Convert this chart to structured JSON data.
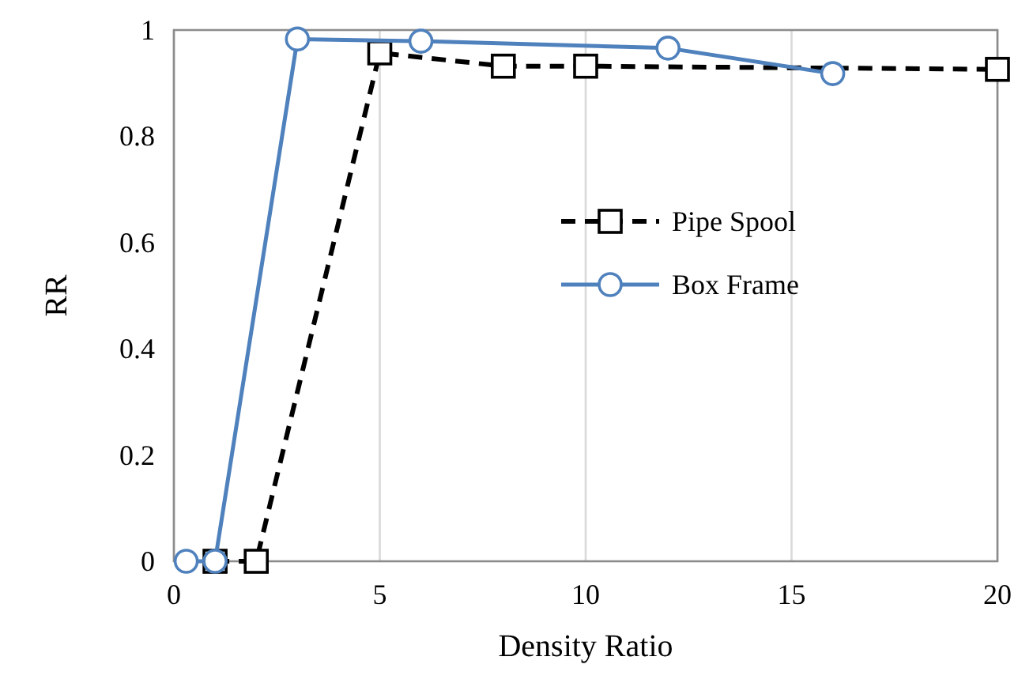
{
  "chart_data": {
    "type": "line",
    "xlabel": "Density Ratio",
    "ylabel": "RR",
    "xlim": [
      0,
      20
    ],
    "ylim": [
      0,
      1
    ],
    "xticks": [
      0,
      5,
      10,
      15,
      20
    ],
    "yticks": [
      0,
      0.2,
      0.4,
      0.6,
      0.8,
      1
    ],
    "grid": "x",
    "legend": "right",
    "series": [
      {
        "name": "Pipe Spool",
        "color": "#000000",
        "marker": "square",
        "line_style": "dashed",
        "x": [
          1,
          2,
          5,
          8,
          10,
          20
        ],
        "values": [
          0,
          0,
          0.957,
          0.932,
          0.932,
          0.926
        ]
      },
      {
        "name": "Box Frame",
        "color": "#4f81bd",
        "marker": "circle",
        "line_style": "solid",
        "x": [
          0.3,
          1,
          3,
          6,
          12,
          16
        ],
        "values": [
          0,
          0,
          0.983,
          0.979,
          0.966,
          0.918
        ]
      }
    ]
  }
}
